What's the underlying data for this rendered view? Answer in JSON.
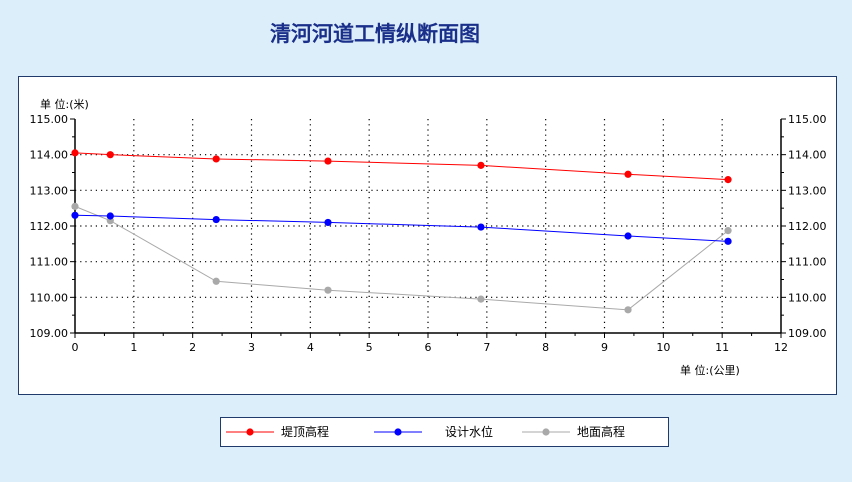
{
  "colors": {
    "page_bg": "#dbeefa",
    "panel_border": "#1f3a6b",
    "title": "#1a2f8a"
  },
  "chart_data": {
    "type": "line",
    "title": "清河河道工情纵断面图",
    "y_unit_label": "单 位:(米)",
    "x_unit_label": "单 位:(公里)",
    "xlim": [
      0,
      12
    ],
    "ylim": [
      109,
      115
    ],
    "x_ticks": [
      0,
      1,
      2,
      3,
      4,
      5,
      6,
      7,
      8,
      9,
      10,
      11,
      12
    ],
    "y_ticks": [
      "109.00",
      "110.00",
      "111.00",
      "112.00",
      "113.00",
      "114.00",
      "115.00"
    ],
    "grid": true,
    "legend_position": "bottom",
    "series": [
      {
        "name": "堤顶高程",
        "color": "#ff0000",
        "points": [
          [
            0,
            114.05
          ],
          [
            0.6,
            114.0
          ],
          [
            2.4,
            113.88
          ],
          [
            4.3,
            113.82
          ],
          [
            6.9,
            113.7
          ],
          [
            9.4,
            113.45
          ],
          [
            11.1,
            113.3
          ]
        ]
      },
      {
        "name": "设计水位",
        "color": "#0000ff",
        "points": [
          [
            0,
            112.3
          ],
          [
            0.6,
            112.28
          ],
          [
            2.4,
            112.18
          ],
          [
            4.3,
            112.1
          ],
          [
            6.9,
            111.97
          ],
          [
            9.4,
            111.72
          ],
          [
            11.1,
            111.57
          ]
        ]
      },
      {
        "name": "地面高程",
        "color": "#a9a9a9",
        "points": [
          [
            0,
            112.55
          ],
          [
            0.6,
            112.15
          ],
          [
            2.4,
            110.45
          ],
          [
            4.3,
            110.2
          ],
          [
            6.9,
            109.95
          ],
          [
            9.4,
            109.65
          ],
          [
            11.1,
            111.87
          ]
        ]
      }
    ]
  }
}
